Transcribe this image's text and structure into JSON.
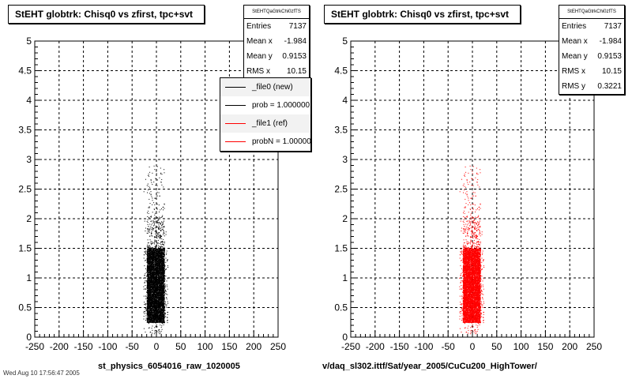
{
  "colors": {
    "left_series": "#000000",
    "right_series": "#ff0000",
    "grid": "#000000",
    "background": "#ffffff"
  },
  "footer_text": "Wed Aug 10 17:56:47 2005",
  "chart_data": [
    {
      "type": "scatter",
      "title": "StEHT globtrk: Chisq0 vs zfirst, tpc+svt",
      "xlabel": "st_physics_6054016_raw_1020005",
      "ylabel": "",
      "xlim": [
        -250,
        250
      ],
      "ylim": [
        0,
        5
      ],
      "xticks": [
        "-250",
        "-200",
        "-150",
        "-100",
        "-50",
        "0",
        "50",
        "100",
        "150",
        "200",
        "250"
      ],
      "yticks": [
        "0",
        "0.5",
        "1",
        "1.5",
        "2",
        "2.5",
        "3",
        "3.5",
        "4",
        "4.5",
        "5"
      ],
      "grid": true,
      "marker_color": "#000000",
      "stats": {
        "name": "StEHTQaGtrkChi0zfTS",
        "rows": [
          {
            "label": "Entries",
            "value": "7137"
          },
          {
            "label": "Mean x",
            "value": "-1.984"
          },
          {
            "label": "Mean y",
            "value": "0.9153"
          },
          {
            "label": "RMS x",
            "value": "10.15"
          }
        ]
      },
      "legend": {
        "position": "top-right",
        "entries": [
          {
            "label": "_file0 (new)",
            "color": "#000000"
          },
          {
            "label": "prob = 1.000000",
            "color": "#000000"
          },
          {
            "label": "_file1 (ref)",
            "color": "#ff0000"
          },
          {
            "label": "probN = 1.000000",
            "color": "#ff0000"
          }
        ]
      },
      "distribution": {
        "entries": 7137,
        "x_mean": -1.984,
        "x_rms": 10.15,
        "y_mean": 0.9153,
        "y_rms": 0.3221,
        "x_range": [
          -25,
          25
        ],
        "y_range": [
          0,
          2.9
        ]
      }
    },
    {
      "type": "scatter",
      "title": "StEHT globtrk: Chisq0 vs zfirst, tpc+svt",
      "xlabel": "v/daq_sl302.ittf/Sat/year_2005/CuCu200_HighTower/",
      "ylabel": "",
      "xlim": [
        -250,
        250
      ],
      "ylim": [
        0,
        5
      ],
      "xticks": [
        "-250",
        "-200",
        "-150",
        "-100",
        "-50",
        "0",
        "50",
        "100",
        "150",
        "200",
        "250"
      ],
      "yticks": [
        "0",
        "0.5",
        "1",
        "1.5",
        "2",
        "2.5",
        "3",
        "3.5",
        "4",
        "4.5",
        "5"
      ],
      "grid": true,
      "marker_color": "#ff0000",
      "stats": {
        "name": "StEHTQaGtrkChi0zfTS",
        "rows": [
          {
            "label": "Entries",
            "value": "7137"
          },
          {
            "label": "Mean x",
            "value": "-1.984"
          },
          {
            "label": "Mean y",
            "value": "0.9153"
          },
          {
            "label": "RMS x",
            "value": "10.15"
          },
          {
            "label": "RMS y",
            "value": "0.3221"
          }
        ]
      },
      "distribution": {
        "entries": 7137,
        "x_mean": -1.984,
        "x_rms": 10.15,
        "y_mean": 0.9153,
        "y_rms": 0.3221,
        "x_range": [
          -25,
          25
        ],
        "y_range": [
          0,
          2.9
        ]
      }
    }
  ]
}
